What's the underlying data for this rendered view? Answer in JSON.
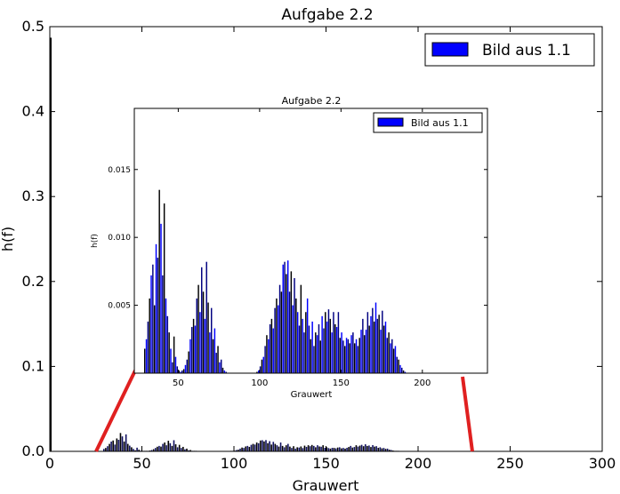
{
  "chart_data": [
    {
      "type": "bar",
      "title": "Aufgabe 2.2",
      "xlabel": "Grauwert",
      "ylabel": "h(f)",
      "xlim": [
        0,
        300
      ],
      "ylim": [
        0,
        0.5
      ],
      "xticks": [
        "0",
        "50",
        "100",
        "150",
        "200",
        "250",
        "300"
      ],
      "yticks": [
        "0.0",
        "0.1",
        "0.2",
        "0.3",
        "0.4",
        "0.5"
      ],
      "legend": {
        "label": "Bild aus 1.1",
        "position": "top-right",
        "color": "#0000ff"
      },
      "grid": false,
      "spike": {
        "x": 0,
        "value": 0.487
      },
      "note": "Histogram of grey values; main view shows full range, inset zooms into range ~25–235"
    },
    {
      "type": "bar",
      "role": "inset",
      "title": "Aufgabe 2.2",
      "xlabel": "Grauwert",
      "ylabel": "h(f)",
      "xlim": [
        23,
        240
      ],
      "ylim": [
        0,
        0.0195
      ],
      "xticks": [
        "50",
        "100",
        "150",
        "200"
      ],
      "yticks": [
        "0.005",
        "0.010",
        "0.015"
      ],
      "legend": {
        "label": "Bild aus 1.1",
        "position": "top-right",
        "color": "#0000ff"
      },
      "grid": false,
      "x_start": 29,
      "values": [
        0.0018,
        0.0025,
        0.0038,
        0.0055,
        0.0072,
        0.008,
        0.005,
        0.0095,
        0.0085,
        0.0135,
        0.011,
        0.0072,
        0.0125,
        0.0055,
        0.0042,
        0.003,
        0.0018,
        0.0008,
        0.0027,
        0.0012,
        0.0005,
        0.0002,
        0.0001,
        0.0002,
        0.0003,
        0.0006,
        0.001,
        0.0016,
        0.0025,
        0.0034,
        0.004,
        0.0035,
        0.0055,
        0.0065,
        0.0045,
        0.0078,
        0.006,
        0.004,
        0.0082,
        0.0052,
        0.003,
        0.0048,
        0.0025,
        0.0033,
        0.0015,
        0.002,
        0.0008,
        0.001,
        0.0004,
        0.0002,
        0.0001,
        0,
        0,
        0,
        0,
        0,
        0,
        0,
        0,
        0,
        0,
        0,
        0,
        0,
        0,
        0,
        0,
        0,
        0,
        0.0001,
        0.0002,
        0.0005,
        0.001,
        0.0012,
        0.002,
        0.0028,
        0.0025,
        0.0036,
        0.004,
        0.0033,
        0.0048,
        0.0055,
        0.005,
        0.0065,
        0.006,
        0.008,
        0.0082,
        0.0073,
        0.0083,
        0.006,
        0.0075,
        0.005,
        0.007,
        0.0055,
        0.0045,
        0.0035,
        0.0065,
        0.004,
        0.003,
        0.0045,
        0.0055,
        0.0035,
        0.0025,
        0.0038,
        0.002,
        0.003,
        0.0028,
        0.0036,
        0.0024,
        0.0042,
        0.0033,
        0.0045,
        0.0038,
        0.0047,
        0.004,
        0.003,
        0.0045,
        0.0036,
        0.0034,
        0.0045,
        0.0026,
        0.003,
        0.0024,
        0.002,
        0.0026,
        0.0025,
        0.0022,
        0.0028,
        0.003,
        0.0022,
        0.0025,
        0.002,
        0.0026,
        0.0032,
        0.004,
        0.0028,
        0.0032,
        0.0045,
        0.0035,
        0.0042,
        0.0048,
        0.0038,
        0.0052,
        0.004,
        0.0043,
        0.0032,
        0.0046,
        0.0035,
        0.0038,
        0.0026,
        0.003,
        0.0022,
        0.0025,
        0.0018,
        0.002,
        0.0012,
        0.001,
        0.0006,
        0.0004,
        0.0002,
        0.0001
      ]
    }
  ]
}
